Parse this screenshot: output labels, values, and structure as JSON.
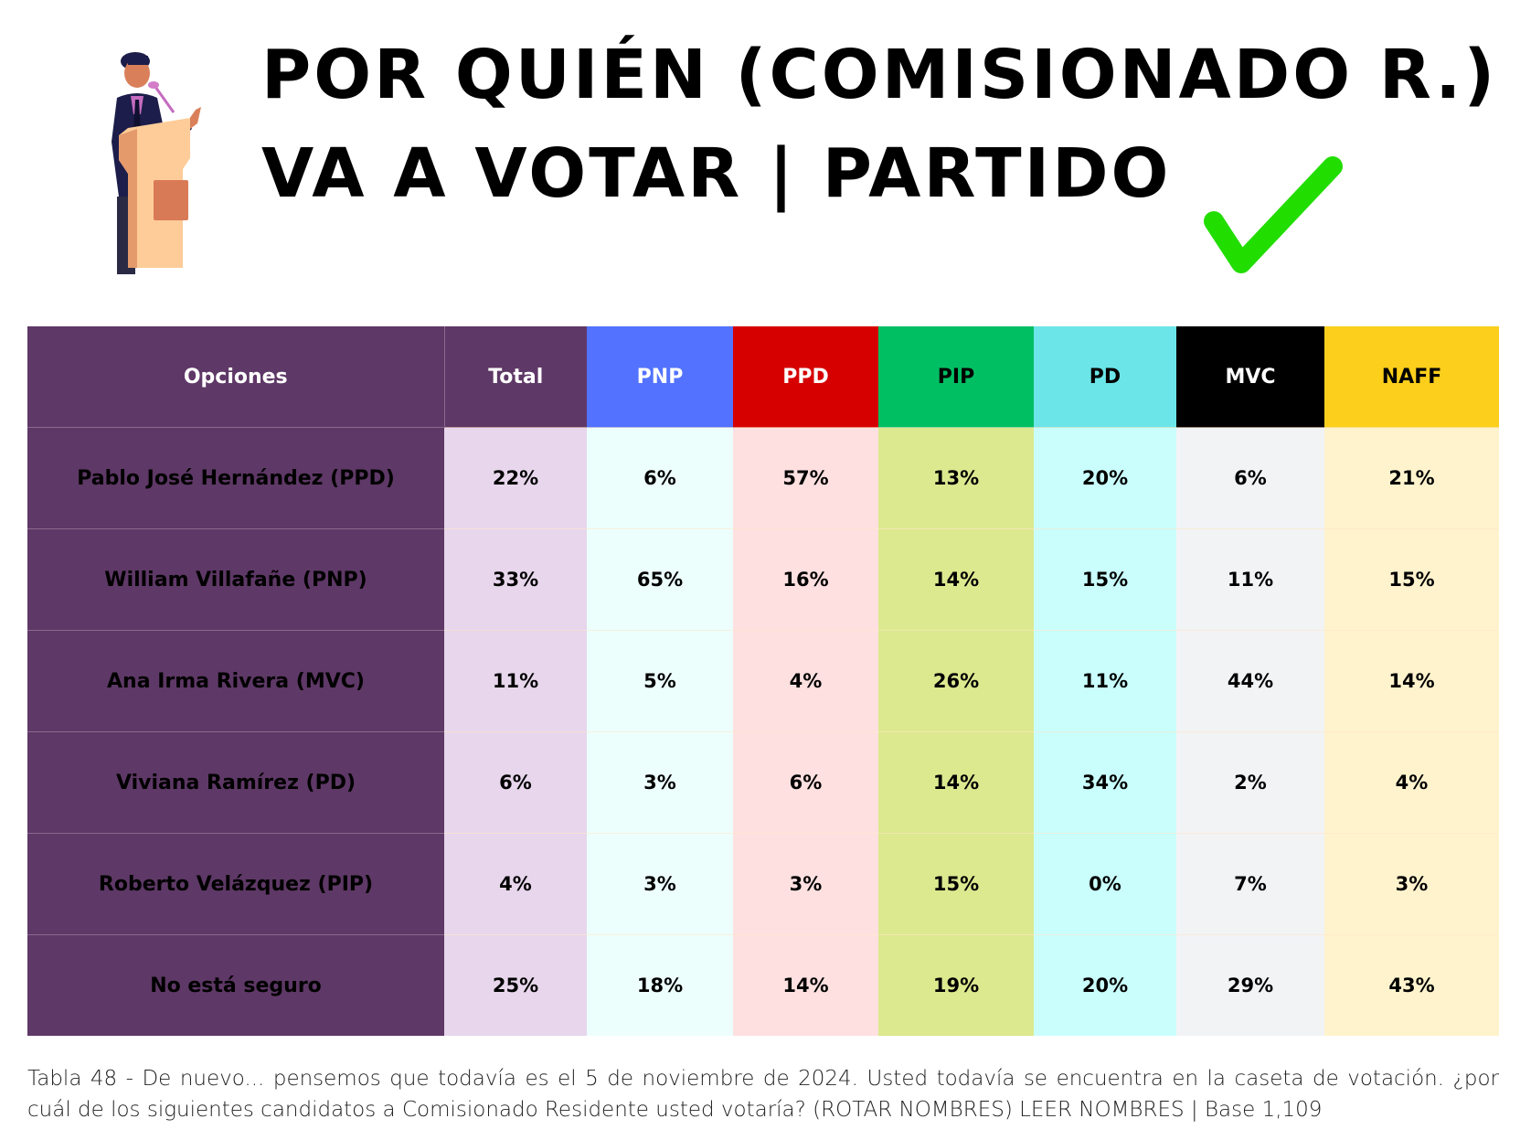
{
  "header": {
    "title_line1": "POR QUIÉN (COMISIONADO R.)",
    "title_line2": "VA A VOTAR | PARTIDO",
    "speaker_icon": "politician-at-podium-icon",
    "check_icon": "green-checkmark-icon",
    "check_color": "#22dd00"
  },
  "table": {
    "columns": [
      {
        "label": "Opciones",
        "header_bg": "#5e3866",
        "header_fg": "#ffffff",
        "cell_bg": "#5e3866"
      },
      {
        "label": "Total",
        "header_bg": "#5e3866",
        "header_fg": "#ffffff",
        "cell_bg": "#e7d6ec"
      },
      {
        "label": "PNP",
        "header_bg": "#5272ff",
        "header_fg": "#ffffff",
        "cell_bg": "#edfffd"
      },
      {
        "label": "PPD",
        "header_bg": "#d60000",
        "header_fg": "#ffffff",
        "cell_bg": "#ffe0e0"
      },
      {
        "label": "PIP",
        "header_bg": "#00bf63",
        "header_fg": "#000000",
        "cell_bg": "#dce98f"
      },
      {
        "label": "PD",
        "header_bg": "#6be5e8",
        "header_fg": "#000000",
        "cell_bg": "#c9fefd"
      },
      {
        "label": "MVC",
        "header_bg": "#000000",
        "header_fg": "#ffffff",
        "cell_bg": "#f2f3f5"
      },
      {
        "label": "NAFF",
        "header_bg": "#fbcf1b",
        "header_fg": "#000000",
        "cell_bg": "#fff3cd"
      }
    ],
    "rows": [
      {
        "option": "Pablo José Hernández (PPD)",
        "values": [
          "22%",
          "6%",
          "57%",
          "13%",
          "20%",
          "6%",
          "21%"
        ]
      },
      {
        "option": "William Villafañe (PNP)",
        "values": [
          "33%",
          "65%",
          "16%",
          "14%",
          "15%",
          "11%",
          "15%"
        ]
      },
      {
        "option": "Ana Irma Rivera (MVC)",
        "values": [
          "11%",
          "5%",
          "4%",
          "26%",
          "11%",
          "44%",
          "14%"
        ]
      },
      {
        "option": "Viviana Ramírez (PD)",
        "values": [
          "6%",
          "3%",
          "6%",
          "14%",
          "34%",
          "2%",
          "4%"
        ]
      },
      {
        "option": "Roberto Velázquez (PIP)",
        "values": [
          "4%",
          "3%",
          "3%",
          "15%",
          "0%",
          "7%",
          "3%"
        ]
      },
      {
        "option": "No está seguro",
        "values": [
          "25%",
          "18%",
          "14%",
          "19%",
          "20%",
          "29%",
          "43%"
        ]
      }
    ]
  },
  "caption": "Tabla 48 - De nuevo... pensemos que todavía es el 5 de noviembre de 2024. Usted todavía se encuentra en la caseta de votación. ¿por cuál de los siguientes candidatos a Comisionado Residente usted votaría?  (ROTAR NOMBRES) LEER NOMBRES | Base 1,109"
}
